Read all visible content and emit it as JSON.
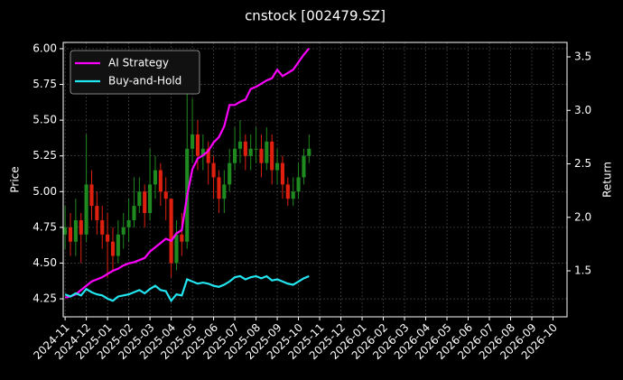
{
  "chart_data": {
    "type": "candlestick",
    "title": "cnstock [002479.SZ]",
    "ylabel": "Price",
    "y2label": "Return",
    "x": [
      0,
      0.25,
      0.5,
      0.75,
      1,
      1.25,
      1.5,
      1.75,
      2,
      2.25,
      2.5,
      2.75,
      3,
      3.25,
      3.5,
      3.75,
      4,
      4.25,
      4.5,
      4.75,
      5,
      5.25,
      5.5,
      5.75,
      6,
      6.25,
      6.5,
      6.75,
      7,
      7.25,
      7.5,
      7.75,
      8,
      8.25,
      8.5,
      8.75,
      9,
      9.25,
      9.5,
      9.75,
      10,
      10.25,
      10.5,
      10.75,
      11,
      11.25,
      11.5
    ],
    "open": [
      4.7,
      4.75,
      4.65,
      4.8,
      4.7,
      5.05,
      4.9,
      4.8,
      4.7,
      4.65,
      4.55,
      4.7,
      4.75,
      4.8,
      4.9,
      5.0,
      4.85,
      5.05,
      5.15,
      5.0,
      4.95,
      4.5,
      4.7,
      4.65,
      5.3,
      5.4,
      5.25,
      5.3,
      5.2,
      5.1,
      4.95,
      5.05,
      5.2,
      5.3,
      5.35,
      5.25,
      5.3,
      5.3,
      5.2,
      5.35,
      5.15,
      5.2,
      5.05,
      4.95,
      5.0,
      5.1,
      5.25
    ],
    "high": [
      4.9,
      4.85,
      4.95,
      4.85,
      5.4,
      5.15,
      5.0,
      4.9,
      4.85,
      4.75,
      4.8,
      4.85,
      4.95,
      5.1,
      5.1,
      5.05,
      5.3,
      5.25,
      5.2,
      5.1,
      4.95,
      4.8,
      4.85,
      5.75,
      5.65,
      5.5,
      5.4,
      5.35,
      5.25,
      5.15,
      5.15,
      5.3,
      5.45,
      5.5,
      5.4,
      5.4,
      5.45,
      5.4,
      5.45,
      5.4,
      5.3,
      5.25,
      5.1,
      5.1,
      5.2,
      5.3,
      5.4
    ],
    "low": [
      4.6,
      4.55,
      4.55,
      4.5,
      4.65,
      4.8,
      4.7,
      4.6,
      4.4,
      4.45,
      4.5,
      4.6,
      4.65,
      4.75,
      4.85,
      4.75,
      4.8,
      4.95,
      4.9,
      4.8,
      4.4,
      4.45,
      4.55,
      4.6,
      5.2,
      5.15,
      5.15,
      5.05,
      4.95,
      4.85,
      4.85,
      5.0,
      5.15,
      5.2,
      5.15,
      5.15,
      5.2,
      5.1,
      5.15,
      5.05,
      5.05,
      4.95,
      4.9,
      4.9,
      4.95,
      5.05,
      5.2
    ],
    "close": [
      4.75,
      4.65,
      4.8,
      4.7,
      5.05,
      4.9,
      4.8,
      4.7,
      4.65,
      4.55,
      4.7,
      4.75,
      4.8,
      4.9,
      5.0,
      4.85,
      5.05,
      5.15,
      5.0,
      4.95,
      4.5,
      4.7,
      4.65,
      5.3,
      5.4,
      5.25,
      5.3,
      5.2,
      5.1,
      4.95,
      5.05,
      5.2,
      5.3,
      5.35,
      5.25,
      5.3,
      5.3,
      5.2,
      5.35,
      5.15,
      5.2,
      5.05,
      4.95,
      5.0,
      5.1,
      5.25,
      5.3
    ],
    "up_color": "#1f8a1f",
    "down_color": "#e0200f",
    "series": [
      {
        "name": "AI Strategy",
        "color": "#ff00ff",
        "axis": "y2",
        "values": [
          1.25,
          1.26,
          1.28,
          1.32,
          1.36,
          1.4,
          1.42,
          1.44,
          1.47,
          1.5,
          1.52,
          1.55,
          1.57,
          1.58,
          1.6,
          1.62,
          1.68,
          1.72,
          1.76,
          1.8,
          1.78,
          1.85,
          1.88,
          2.2,
          2.45,
          2.55,
          2.58,
          2.62,
          2.7,
          2.75,
          2.85,
          3.05,
          3.05,
          3.08,
          3.1,
          3.2,
          3.22,
          3.25,
          3.28,
          3.3,
          3.38,
          3.32,
          3.35,
          3.38,
          3.45,
          3.52,
          3.58
        ]
      },
      {
        "name": "Buy-and-Hold",
        "color": "#22e5f0",
        "axis": "y2",
        "values": [
          1.28,
          1.26,
          1.29,
          1.27,
          1.33,
          1.3,
          1.28,
          1.27,
          1.24,
          1.22,
          1.26,
          1.27,
          1.28,
          1.3,
          1.32,
          1.29,
          1.33,
          1.36,
          1.32,
          1.31,
          1.22,
          1.28,
          1.27,
          1.42,
          1.4,
          1.38,
          1.39,
          1.38,
          1.36,
          1.35,
          1.37,
          1.4,
          1.44,
          1.45,
          1.42,
          1.44,
          1.45,
          1.43,
          1.45,
          1.41,
          1.42,
          1.4,
          1.38,
          1.37,
          1.4,
          1.43,
          1.45
        ]
      }
    ],
    "xlim": [
      -0.09,
      23.66
    ],
    "xticks": [
      {
        "value": 0,
        "label": "2024-11"
      },
      {
        "value": 1,
        "label": "2024-12"
      },
      {
        "value": 2,
        "label": "2025-01"
      },
      {
        "value": 3,
        "label": "2025-02"
      },
      {
        "value": 4,
        "label": "2025-03"
      },
      {
        "value": 5,
        "label": "2025-04"
      },
      {
        "value": 6,
        "label": "2025-05"
      },
      {
        "value": 7,
        "label": "2025-06"
      },
      {
        "value": 8,
        "label": "2025-07"
      },
      {
        "value": 9,
        "label": "2025-08"
      },
      {
        "value": 10,
        "label": "2025-09"
      },
      {
        "value": 11,
        "label": "2025-10"
      },
      {
        "value": 12,
        "label": "2025-11"
      },
      {
        "value": 13,
        "label": "2025-12"
      },
      {
        "value": 14,
        "label": "2026-01"
      },
      {
        "value": 15,
        "label": "2026-02"
      },
      {
        "value": 16,
        "label": "2026-03"
      },
      {
        "value": 17,
        "label": "2026-04"
      },
      {
        "value": 18,
        "label": "2026-05"
      },
      {
        "value": 19,
        "label": "2026-06"
      },
      {
        "value": 20,
        "label": "2026-07"
      },
      {
        "value": 21,
        "label": "2026-08"
      },
      {
        "value": 22,
        "label": "2026-09"
      },
      {
        "value": 23,
        "label": "2026-10"
      }
    ],
    "ylim": [
      4.124,
      6.044
    ],
    "yticks": [
      4.25,
      {
        "value": 4.5,
        "label": "4.50"
      },
      4.75,
      {
        "value": 5,
        "label": "5.00"
      },
      5.25,
      {
        "value": 5.5,
        "label": "5.50"
      },
      5.75,
      {
        "value": 6,
        "label": "6.00"
      }
    ],
    "y2lim": [
      1.07,
      3.635
    ],
    "y2ticks": [
      1.5,
      {
        "value": 2,
        "label": "2.0"
      },
      2.5,
      {
        "value": 3,
        "label": "3.0"
      },
      3.5
    ],
    "grid": true,
    "legend": "upper left"
  }
}
